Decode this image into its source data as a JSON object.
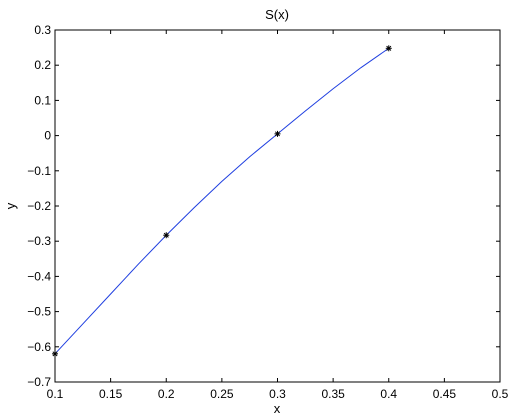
{
  "chart_data": {
    "type": "line",
    "title": "S(x)",
    "xlabel": "x",
    "ylabel": "y",
    "xlim": [
      0.1,
      0.5
    ],
    "ylim": [
      -0.7,
      0.3
    ],
    "xticks": [
      "0.1",
      "0.15",
      "0.2",
      "0.25",
      "0.3",
      "0.35",
      "0.4",
      "0.45",
      "0.5"
    ],
    "yticks": [
      "−0.7",
      "−0.6",
      "−0.5",
      "−0.4",
      "−0.3",
      "−0.2",
      "−0.1",
      "0",
      "0.1",
      "0.2",
      "0.3"
    ],
    "grid": false,
    "series": [
      {
        "style": "line",
        "color": "#1f3fe0",
        "x": [
          0.1,
          0.125,
          0.15,
          0.175,
          0.2,
          0.225,
          0.25,
          0.275,
          0.3,
          0.325,
          0.35,
          0.375,
          0.4
        ],
        "y": [
          -0.62,
          -0.535,
          -0.45,
          -0.365,
          -0.283,
          -0.205,
          -0.13,
          -0.06,
          0.005,
          0.07,
          0.133,
          0.193,
          0.248
        ]
      },
      {
        "style": "markers",
        "marker": "asterisk",
        "color": "#000000",
        "x": [
          0.1,
          0.2,
          0.3,
          0.4
        ],
        "y": [
          -0.62,
          -0.283,
          0.005,
          0.248
        ]
      }
    ]
  }
}
